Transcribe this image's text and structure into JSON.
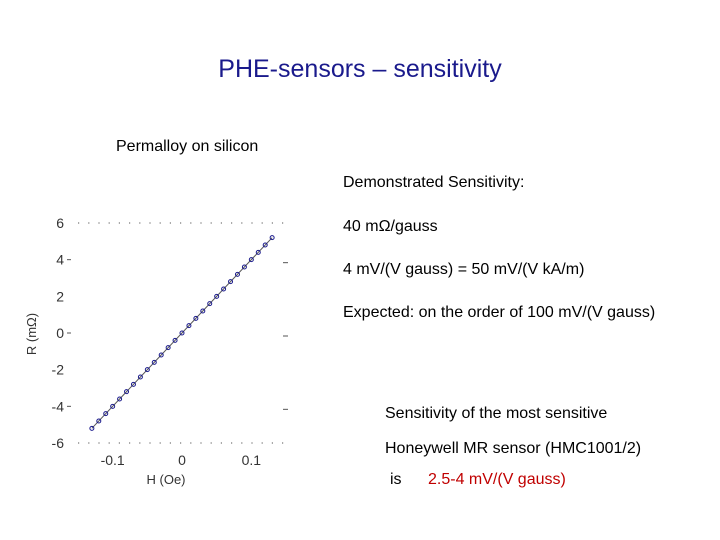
{
  "slide": {
    "title": "PHE-sensors – sensitivity",
    "subtitle": "Permalloy on silicon",
    "demonstrated_heading": "Demonstrated Sensitivity:",
    "sensitivity_1": "40 mΩ/gauss",
    "sensitivity_2": "4 mV/(V gauss) = 50 mV/(V kA/m)",
    "expected": "Expected: on the order of 100 mV/(V gauss)",
    "honeywell_line1": "Sensitivity of the most sensitive",
    "honeywell_line2": "Honeywell MR sensor (HMC1001/2)",
    "honeywell_is": "is",
    "honeywell_value": "2.5-4  mV/(V gauss)",
    "colors": {
      "title": "#1a1a8c",
      "emphasis": "#c00000",
      "markers": "#1a1a8c"
    }
  },
  "chart_data": {
    "type": "scatter",
    "xlabel": "H (Oe)",
    "ylabel": "R (mΩ)",
    "xlim": [
      -0.15,
      0.15
    ],
    "ylim": [
      -6,
      6
    ],
    "x_tick_labels": [
      "-0.1",
      "0",
      "0.1"
    ],
    "y_tick_labels": [
      "6",
      "4",
      "2",
      "0",
      "-2",
      "-4",
      "-6"
    ],
    "series": [
      {
        "x": [
          -0.13,
          -0.12,
          -0.11,
          -0.1,
          -0.09,
          -0.08,
          -0.07,
          -0.06,
          -0.05,
          -0.04,
          -0.03,
          -0.02,
          -0.01,
          0,
          0.01,
          0.02,
          0.03,
          0.04,
          0.05,
          0.06,
          0.07,
          0.08,
          0.09,
          0.1,
          0.11,
          0.12,
          0.13
        ],
        "y": [
          -5.2,
          -4.8,
          -4.4,
          -4.0,
          -3.6,
          -3.2,
          -2.8,
          -2.4,
          -2.0,
          -1.6,
          -1.2,
          -0.8,
          -0.4,
          0.0,
          0.4,
          0.8,
          1.2,
          1.6,
          2.0,
          2.4,
          2.8,
          3.2,
          3.6,
          4.0,
          4.4,
          4.8,
          5.2
        ]
      }
    ]
  }
}
